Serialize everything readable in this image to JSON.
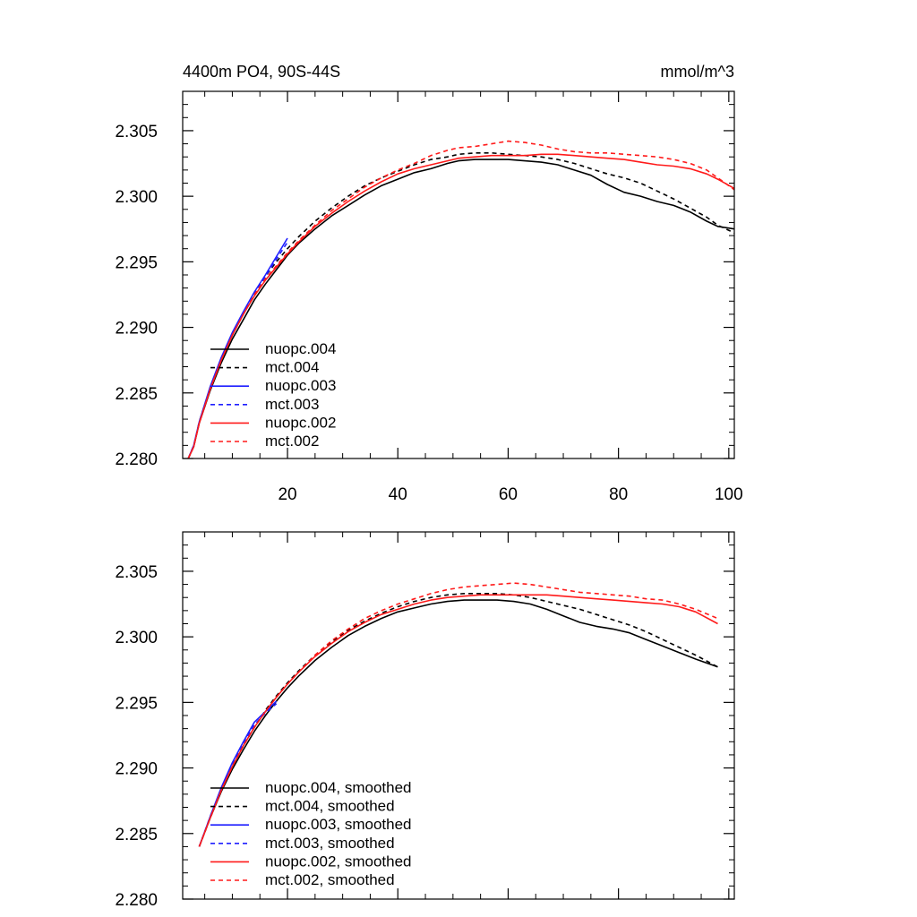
{
  "title_left": "4400m PO4, 90S-44S",
  "title_right": "mmol/m^3",
  "colors": {
    "black": "#000000",
    "blue": "#1f1fff",
    "red": "#ff1a1a"
  },
  "chart_data": [
    {
      "type": "line",
      "name": "raw",
      "title": "4400m PO4, 90S-44S",
      "units": "mmol/m^3",
      "xlim": [
        1,
        101
      ],
      "ylim": [
        2.28,
        2.308
      ],
      "x_ticks": [
        20,
        40,
        60,
        80,
        100
      ],
      "x_tick_labels": [
        "20",
        "40",
        "60",
        "80",
        "100"
      ],
      "y_ticks": [
        2.28,
        2.285,
        2.29,
        2.295,
        2.3,
        2.305
      ],
      "y_tick_labels": [
        "2.280",
        "2.285",
        "2.290",
        "2.295",
        "2.300",
        "2.305"
      ],
      "legend_position": "bottom-left",
      "series": [
        {
          "name": "nuopc.004",
          "color": "black",
          "dash": false,
          "x": [
            2,
            3,
            4,
            6,
            8,
            10,
            12,
            14,
            16,
            18,
            20,
            22,
            25,
            28,
            31,
            34,
            37,
            40,
            43,
            46,
            49,
            51,
            54,
            57,
            60,
            63,
            66,
            69,
            72,
            75,
            78,
            81,
            84,
            87,
            90,
            93,
            96,
            98,
            101
          ],
          "y": [
            2.28,
            2.2809,
            2.2827,
            2.2852,
            2.2873,
            2.2891,
            2.2906,
            2.2921,
            2.2933,
            2.2944,
            2.2955,
            2.2964,
            2.2975,
            2.2985,
            2.2993,
            2.3001,
            2.3008,
            2.3013,
            2.3018,
            2.3021,
            2.3025,
            2.3027,
            2.3028,
            2.3028,
            2.3028,
            2.3027,
            2.3026,
            2.3024,
            2.302,
            2.3016,
            2.3009,
            2.3003,
            2.3,
            2.2996,
            2.2993,
            2.2988,
            2.2981,
            2.2977,
            2.2975
          ]
        },
        {
          "name": "mct.004",
          "color": "black",
          "dash": true,
          "x": [
            2,
            3,
            4,
            6,
            8,
            10,
            12,
            14,
            16,
            18,
            20,
            22,
            25,
            28,
            31,
            34,
            37,
            40,
            43,
            46,
            49,
            51,
            54,
            57,
            60,
            63,
            66,
            69,
            72,
            75,
            78,
            81,
            84,
            87,
            90,
            93,
            96,
            98,
            101
          ],
          "y": [
            2.28,
            2.2809,
            2.2828,
            2.2854,
            2.2876,
            2.2895,
            2.2911,
            2.2926,
            2.2939,
            2.295,
            2.296,
            2.2969,
            2.2981,
            2.2991,
            2.3,
            2.3008,
            2.3014,
            2.3019,
            2.3024,
            2.3028,
            2.303,
            2.3032,
            2.3033,
            2.3033,
            2.3032,
            2.3031,
            2.303,
            2.3028,
            2.3025,
            2.3021,
            2.3017,
            2.3014,
            2.301,
            2.3004,
            2.2998,
            2.2991,
            2.2984,
            2.2978,
            2.2972
          ]
        },
        {
          "name": "nuopc.003",
          "color": "blue",
          "dash": false,
          "x": [
            2,
            3,
            4,
            6,
            8,
            10,
            12,
            14,
            16,
            18,
            20
          ],
          "y": [
            2.28,
            2.281,
            2.2828,
            2.2855,
            2.2877,
            2.2896,
            2.2912,
            2.2927,
            2.294,
            2.2954,
            2.2968
          ]
        },
        {
          "name": "mct.003",
          "color": "blue",
          "dash": true,
          "x": [
            2,
            3,
            4,
            6,
            8,
            10,
            12,
            14,
            16,
            18,
            20
          ],
          "y": [
            2.28,
            2.281,
            2.2827,
            2.2854,
            2.2876,
            2.2895,
            2.2911,
            2.2926,
            2.2939,
            2.2952,
            2.2965
          ]
        },
        {
          "name": "nuopc.002",
          "color": "red",
          "dash": false,
          "x": [
            2,
            3,
            4,
            6,
            8,
            10,
            12,
            14,
            16,
            18,
            20,
            22,
            25,
            28,
            31,
            34,
            37,
            40,
            43,
            46,
            49,
            51,
            54,
            57,
            60,
            63,
            66,
            69,
            72,
            75,
            78,
            81,
            84,
            87,
            90,
            93,
            96,
            98,
            101
          ],
          "y": [
            2.28,
            2.2809,
            2.2827,
            2.2853,
            2.2875,
            2.2894,
            2.291,
            2.2924,
            2.2936,
            2.2946,
            2.2956,
            2.2965,
            2.2977,
            2.2987,
            2.2996,
            2.3004,
            2.3011,
            2.3017,
            2.3021,
            2.3024,
            2.3027,
            2.3029,
            2.303,
            2.3031,
            2.3031,
            2.3031,
            2.3032,
            2.3032,
            2.3031,
            2.303,
            2.3029,
            2.3028,
            2.3026,
            2.3024,
            2.3023,
            2.3021,
            2.3017,
            2.3013,
            2.3006
          ]
        },
        {
          "name": "mct.002",
          "color": "red",
          "dash": true,
          "x": [
            2,
            3,
            4,
            6,
            8,
            10,
            12,
            14,
            16,
            18,
            20,
            22,
            25,
            28,
            31,
            34,
            37,
            40,
            43,
            46,
            49,
            51,
            54,
            57,
            60,
            63,
            66,
            69,
            72,
            75,
            78,
            81,
            84,
            87,
            90,
            93,
            96,
            98,
            101
          ],
          "y": [
            2.28,
            2.2809,
            2.2827,
            2.2853,
            2.2875,
            2.2894,
            2.291,
            2.2925,
            2.2937,
            2.2947,
            2.2957,
            2.2966,
            2.2978,
            2.2989,
            2.2998,
            2.3007,
            2.3014,
            2.302,
            2.3025,
            2.3031,
            2.3035,
            2.3037,
            2.3038,
            2.304,
            2.3042,
            2.3041,
            2.3039,
            2.3036,
            2.3034,
            2.3033,
            2.3033,
            2.3032,
            2.3031,
            2.303,
            2.3028,
            2.3025,
            2.302,
            2.3014,
            2.3005
          ]
        }
      ]
    },
    {
      "type": "line",
      "name": "smoothed",
      "xlim": [
        1,
        101
      ],
      "ylim": [
        2.28,
        2.308
      ],
      "x_ticks": [
        20,
        40,
        60,
        80,
        100
      ],
      "y_ticks": [
        2.28,
        2.285,
        2.29,
        2.295,
        2.3,
        2.305
      ],
      "y_tick_labels": [
        "2.280",
        "2.285",
        "2.290",
        "2.295",
        "2.300",
        "2.305"
      ],
      "legend_position": "bottom-left",
      "series": [
        {
          "name": "nuopc.004, smoothed",
          "color": "black",
          "dash": false,
          "x": [
            4,
            6,
            8,
            10,
            12,
            14,
            16,
            18,
            20,
            22,
            25,
            28,
            31,
            34,
            37,
            40,
            43,
            46,
            49,
            52,
            55,
            58,
            61,
            64,
            67,
            70,
            73,
            76,
            79,
            82,
            85,
            88,
            91,
            94,
            98
          ],
          "y": [
            2.284,
            2.2862,
            2.2882,
            2.2899,
            2.2914,
            2.2928,
            2.294,
            2.2951,
            2.2961,
            2.297,
            2.2982,
            2.2992,
            2.3001,
            2.3008,
            2.3014,
            2.3019,
            2.3022,
            2.3025,
            2.3027,
            2.3028,
            2.3028,
            2.3028,
            2.3027,
            2.3025,
            2.3021,
            2.3016,
            2.3011,
            2.3008,
            2.3006,
            2.3003,
            2.2998,
            2.2993,
            2.2988,
            2.2983,
            2.2977
          ]
        },
        {
          "name": "mct.004, smoothed",
          "color": "black",
          "dash": true,
          "x": [
            4,
            6,
            8,
            10,
            12,
            14,
            16,
            18,
            20,
            22,
            25,
            28,
            31,
            34,
            37,
            40,
            43,
            46,
            49,
            52,
            55,
            58,
            61,
            64,
            67,
            70,
            73,
            76,
            79,
            82,
            85,
            88,
            91,
            94,
            98
          ],
          "y": [
            2.284,
            2.2862,
            2.2883,
            2.2901,
            2.2917,
            2.2931,
            2.2944,
            2.2955,
            2.2965,
            2.2974,
            2.2986,
            2.2996,
            2.3005,
            2.3012,
            2.3018,
            2.3023,
            2.3027,
            2.303,
            2.3032,
            2.3033,
            2.3033,
            2.3033,
            2.3032,
            2.303,
            2.3027,
            2.3024,
            2.3021,
            2.3017,
            2.3013,
            2.3009,
            2.3004,
            2.2998,
            2.2992,
            2.2986,
            2.2977
          ]
        },
        {
          "name": "nuopc.003, smoothed",
          "color": "blue",
          "dash": false,
          "x": [
            4,
            6,
            8,
            10,
            12,
            14,
            16,
            18
          ],
          "y": [
            2.284,
            2.2863,
            2.2885,
            2.2904,
            2.292,
            2.2935,
            2.2943,
            2.2951
          ]
        },
        {
          "name": "mct.003, smoothed",
          "color": "blue",
          "dash": true,
          "x": [
            4,
            6,
            8,
            10,
            12,
            14,
            16,
            18
          ],
          "y": [
            2.284,
            2.2863,
            2.2884,
            2.2903,
            2.2919,
            2.2933,
            2.2942,
            2.2949
          ]
        },
        {
          "name": "nuopc.002, smoothed",
          "color": "red",
          "dash": false,
          "x": [
            4,
            6,
            8,
            10,
            12,
            14,
            16,
            18,
            20,
            22,
            25,
            28,
            31,
            34,
            37,
            40,
            43,
            46,
            49,
            52,
            55,
            58,
            61,
            64,
            67,
            70,
            73,
            76,
            79,
            82,
            85,
            88,
            91,
            94,
            98
          ],
          "y": [
            2.284,
            2.2862,
            2.2883,
            2.2901,
            2.2917,
            2.2931,
            2.2943,
            2.2954,
            2.2964,
            2.2973,
            2.2985,
            2.2995,
            2.3004,
            2.3011,
            2.3017,
            2.3021,
            2.3025,
            2.3028,
            2.303,
            2.3031,
            2.3032,
            2.3032,
            2.3032,
            2.3032,
            2.3032,
            2.3031,
            2.303,
            2.3029,
            2.3028,
            2.3027,
            2.3026,
            2.3025,
            2.3023,
            2.3019,
            2.301
          ]
        },
        {
          "name": "mct.002, smoothed",
          "color": "red",
          "dash": true,
          "x": [
            4,
            6,
            8,
            10,
            12,
            14,
            16,
            18,
            20,
            22,
            25,
            28,
            31,
            34,
            37,
            40,
            43,
            46,
            49,
            52,
            55,
            58,
            61,
            64,
            67,
            70,
            73,
            76,
            79,
            82,
            85,
            88,
            91,
            94,
            98
          ],
          "y": [
            2.284,
            2.2862,
            2.2883,
            2.2901,
            2.2917,
            2.2931,
            2.2943,
            2.2954,
            2.2964,
            2.2973,
            2.2986,
            2.2997,
            2.3006,
            2.3014,
            2.302,
            2.3025,
            2.3029,
            2.3033,
            2.3036,
            2.3038,
            2.3039,
            2.304,
            2.3041,
            2.304,
            2.3038,
            2.3036,
            2.3034,
            2.3033,
            2.3032,
            2.3031,
            2.3029,
            2.3028,
            2.3025,
            2.3021,
            2.3014
          ]
        }
      ]
    }
  ]
}
